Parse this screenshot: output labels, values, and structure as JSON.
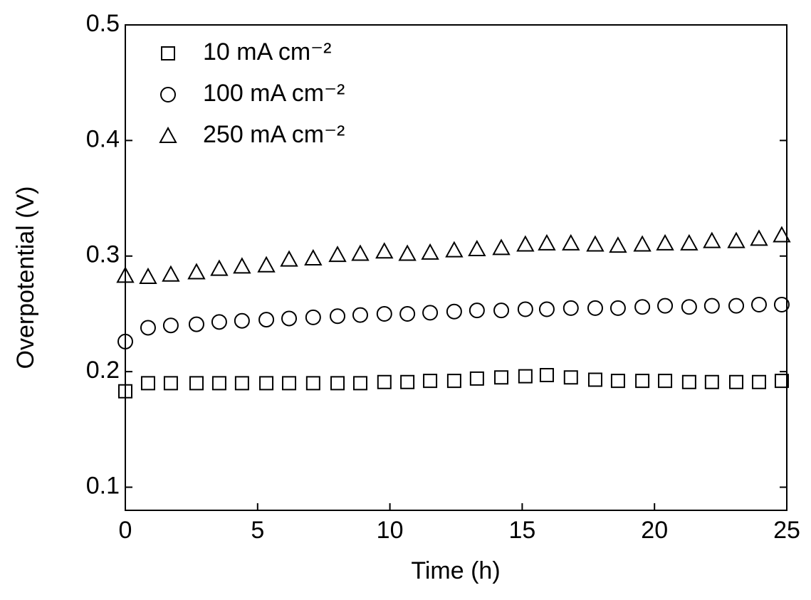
{
  "chart_data": {
    "type": "scatter",
    "xlabel": "Time (h)",
    "ylabel": "Overpotential (V)",
    "x": [
      0,
      0.86,
      1.72,
      2.69,
      3.55,
      4.41,
      5.33,
      6.19,
      7.1,
      8.02,
      8.88,
      9.79,
      10.66,
      11.52,
      12.43,
      13.29,
      14.21,
      15.12,
      15.93,
      16.84,
      17.76,
      18.62,
      19.54,
      20.4,
      21.31,
      22.17,
      23.09,
      23.95,
      24.81
    ],
    "series": [
      {
        "name": "10 mA cm⁻²",
        "color": "#000000",
        "marker": "square",
        "values": [
          0.183,
          0.19,
          0.19,
          0.19,
          0.19,
          0.19,
          0.19,
          0.19,
          0.19,
          0.19,
          0.19,
          0.191,
          0.191,
          0.192,
          0.192,
          0.194,
          0.195,
          0.196,
          0.197,
          0.195,
          0.193,
          0.192,
          0.192,
          0.192,
          0.191,
          0.191,
          0.191,
          0.191,
          0.192
        ]
      },
      {
        "name": "100 mA cm⁻²",
        "color": "#000000",
        "marker": "circle",
        "values": [
          0.226,
          0.238,
          0.24,
          0.241,
          0.243,
          0.244,
          0.245,
          0.246,
          0.247,
          0.248,
          0.249,
          0.25,
          0.25,
          0.251,
          0.252,
          0.253,
          0.253,
          0.254,
          0.254,
          0.255,
          0.255,
          0.255,
          0.256,
          0.257,
          0.256,
          0.257,
          0.257,
          0.258,
          0.258
        ]
      },
      {
        "name": "250 mA cm⁻²",
        "color": "#000000",
        "marker": "triangle",
        "values": [
          0.283,
          0.282,
          0.284,
          0.286,
          0.289,
          0.291,
          0.292,
          0.297,
          0.298,
          0.301,
          0.302,
          0.304,
          0.302,
          0.303,
          0.305,
          0.306,
          0.307,
          0.31,
          0.311,
          0.311,
          0.31,
          0.309,
          0.31,
          0.311,
          0.311,
          0.313,
          0.313,
          0.315,
          0.318
        ]
      }
    ],
    "xlim": [
      0,
      25
    ],
    "xticks": [
      0,
      5,
      10,
      15,
      20,
      25
    ],
    "ylim": [
      0.08,
      0.5
    ],
    "yticks": [
      0.1,
      0.2,
      0.3,
      0.4,
      0.5
    ],
    "legend": "upper-left",
    "grid": false
  }
}
